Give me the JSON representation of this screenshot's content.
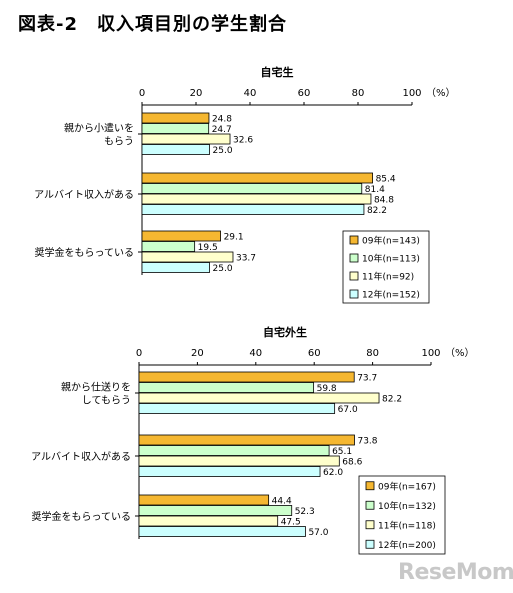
{
  "figure_title": "図表-2　収入項目別の学生割合",
  "watermark": "ReseMom",
  "colors": {
    "09年": "#f5b731",
    "10年": "#ccffcc",
    "11年": "#ffffcc",
    "12年": "#ccffff",
    "bar_stroke": "#000000"
  },
  "chart_data": [
    {
      "type": "bar",
      "orientation": "horizontal",
      "title": "自宅生",
      "x_unit": "（%）",
      "xlim": [
        0,
        100
      ],
      "x_ticks": [
        0,
        20,
        40,
        60,
        80,
        100
      ],
      "categories": [
        [
          "親から小遣いを",
          "もらう"
        ],
        [
          "アルバイト収入がある"
        ],
        [
          "奨学金をもらっている"
        ]
      ],
      "series": [
        {
          "name": "09年(n=143)",
          "values": [
            24.8,
            85.4,
            29.1
          ]
        },
        {
          "name": "10年(n=113)",
          "values": [
            24.7,
            81.4,
            19.5
          ]
        },
        {
          "name": "11年(n=92)",
          "values": [
            32.6,
            84.8,
            33.7
          ]
        },
        {
          "name": "12年(n=152)",
          "values": [
            25.0,
            82.2,
            25.0
          ]
        }
      ],
      "legend_position": "bottom-right",
      "grid": false
    },
    {
      "type": "bar",
      "orientation": "horizontal",
      "title": "自宅外生",
      "x_unit": "（%）",
      "xlim": [
        0,
        100
      ],
      "x_ticks": [
        0,
        20,
        40,
        60,
        80,
        100
      ],
      "categories": [
        [
          "親から仕送りを",
          "してもらう"
        ],
        [
          "アルバイト収入がある"
        ],
        [
          "奨学金をもらっている"
        ]
      ],
      "series": [
        {
          "name": "09年(n=167)",
          "values": [
            73.7,
            73.8,
            44.4
          ]
        },
        {
          "name": "10年(n=132)",
          "values": [
            59.8,
            65.1,
            52.3
          ]
        },
        {
          "name": "11年(n=118)",
          "values": [
            82.2,
            68.6,
            47.5
          ]
        },
        {
          "name": "12年(n=200)",
          "values": [
            67.0,
            62.0,
            57.0
          ]
        }
      ],
      "legend_position": "bottom-right",
      "grid": false
    }
  ]
}
